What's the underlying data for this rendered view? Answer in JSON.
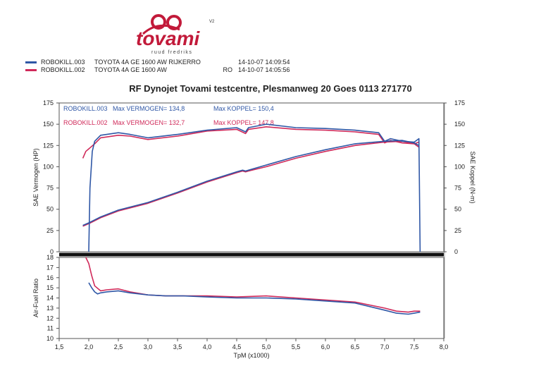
{
  "logo": {
    "brand": "tovami",
    "tagline": "ruud fredriks",
    "version": "V2"
  },
  "legend_rows": [
    {
      "run": "ROBOKILL.003",
      "vehicle": "TOYOTA 4A GE 1600 AW RIJKERRO",
      "suffix": "",
      "date": "14-10-07 14:09:54",
      "color": "#2f57a6"
    },
    {
      "run": "ROBOKILL.002",
      "vehicle": "TOYOTA 4A GE 1600 AW",
      "suffix": "RO",
      "date": "14-10-07 14:05:56",
      "color": "#d02a5a"
    }
  ],
  "title": "RF Dynojet Tovami testcentre, Plesmanweg 20 Goes 0113 271770",
  "chart_data": {
    "type": "line",
    "colors": {
      "run003": "#2f57a6",
      "run002": "#d02a5a"
    },
    "annotations": [
      {
        "run": "ROBOKILL.003",
        "vermogen": "Max VERMOGEN= 134,8",
        "koppel": "Max KOPPEL= 150,4",
        "color": "#2f57a6"
      },
      {
        "run": "ROBOKILL.002",
        "vermogen": "Max VERMOGEN= 132,7",
        "koppel": "Max KOPPEL= 147,8",
        "color": "#d02a5a"
      }
    ],
    "top": {
      "ylabel_left": "SAE Vermogen (HP)",
      "ylabel_right": "SAE Koppel (N-m)",
      "ylim": [
        0,
        175
      ],
      "yticks": [
        "0",
        "25",
        "50",
        "75",
        "100",
        "125",
        "150",
        "175"
      ],
      "series": [
        {
          "kind": "power",
          "run": "ROBOKILL.003",
          "x": [
            1.9,
            2.0,
            2.2,
            2.5,
            3.0,
            3.5,
            4.0,
            4.5,
            4.6,
            4.65,
            4.7,
            5.0,
            5.5,
            6.0,
            6.5,
            7.0,
            7.3,
            7.5,
            7.58
          ],
          "y": [
            31,
            34,
            41,
            49,
            58,
            70,
            83,
            94,
            96,
            95,
            96,
            102,
            112,
            120,
            127,
            130,
            131,
            128,
            125
          ]
        },
        {
          "kind": "power",
          "run": "ROBOKILL.002",
          "x": [
            1.9,
            2.0,
            2.2,
            2.5,
            3.0,
            3.5,
            4.0,
            4.5,
            4.6,
            4.65,
            4.7,
            5.0,
            5.5,
            6.0,
            6.5,
            7.0,
            7.3,
            7.5,
            7.58
          ],
          "y": [
            30,
            33,
            40,
            48,
            57,
            69,
            82,
            93,
            95,
            94,
            95,
            100,
            110,
            118,
            125,
            129,
            130,
            127,
            123
          ]
        },
        {
          "kind": "torque",
          "run": "ROBOKILL.003",
          "x": [
            2.0,
            2.02,
            2.06,
            2.1,
            2.2,
            2.5,
            2.7,
            3.0,
            3.5,
            4.0,
            4.5,
            4.65,
            4.7,
            5.0,
            5.5,
            6.0,
            6.5,
            6.9,
            7.0,
            7.1,
            7.3,
            7.5,
            7.58,
            7.6
          ],
          "y": [
            0,
            75,
            118,
            130,
            137,
            140,
            138,
            134,
            138,
            143,
            146,
            141,
            146,
            150,
            146,
            145,
            143,
            140,
            130,
            133,
            130,
            129,
            133,
            0
          ]
        },
        {
          "kind": "torque",
          "run": "ROBOKILL.002",
          "x": [
            1.9,
            1.95,
            2.0,
            2.1,
            2.2,
            2.5,
            2.7,
            3.0,
            3.5,
            4.0,
            4.5,
            4.65,
            4.7,
            5.0,
            5.5,
            6.0,
            6.5,
            6.9,
            7.0,
            7.1,
            7.3,
            7.5,
            7.58
          ],
          "y": [
            110,
            118,
            121,
            127,
            134,
            137,
            136,
            132,
            136,
            142,
            144,
            139,
            144,
            147,
            144,
            143,
            141,
            138,
            128,
            131,
            128,
            127,
            129
          ]
        }
      ]
    },
    "afr": {
      "ylabel": "Air-Fuel Ratio",
      "ylim": [
        10,
        18
      ],
      "yticks": [
        "10",
        "11",
        "12",
        "13",
        "14",
        "15",
        "16",
        "17",
        "18"
      ],
      "series": [
        {
          "run": "ROBOKILL.003",
          "x": [
            2.0,
            2.05,
            2.1,
            2.15,
            2.2,
            2.3,
            2.5,
            2.7,
            3.0,
            3.3,
            3.6,
            4.0,
            4.5,
            5.0,
            5.5,
            6.0,
            6.5,
            7.0,
            7.2,
            7.4,
            7.5,
            7.6
          ],
          "y": [
            15.5,
            15.0,
            14.6,
            14.4,
            14.5,
            14.6,
            14.7,
            14.5,
            14.3,
            14.2,
            14.2,
            14.1,
            14.0,
            14.0,
            13.9,
            13.7,
            13.5,
            12.8,
            12.5,
            12.4,
            12.5,
            12.6
          ]
        },
        {
          "run": "ROBOKILL.002",
          "x": [
            1.95,
            2.0,
            2.05,
            2.1,
            2.2,
            2.3,
            2.5,
            2.7,
            3.0,
            3.3,
            3.6,
            4.0,
            4.5,
            5.0,
            5.5,
            6.0,
            6.5,
            7.0,
            7.2,
            7.4,
            7.5,
            7.6
          ],
          "y": [
            18.0,
            17.4,
            16.2,
            15.2,
            14.7,
            14.8,
            14.9,
            14.6,
            14.3,
            14.2,
            14.2,
            14.2,
            14.1,
            14.2,
            14.0,
            13.8,
            13.6,
            13.0,
            12.7,
            12.6,
            12.7,
            12.7
          ]
        }
      ]
    },
    "x": {
      "label": "TpM (x1000)",
      "xlim": [
        1.5,
        8.0
      ],
      "ticks": [
        "1,5",
        "2,0",
        "2,5",
        "3,0",
        "3,5",
        "4,0",
        "4,5",
        "5,0",
        "5,5",
        "6,0",
        "6,5",
        "7,0",
        "7,5",
        "8,0"
      ]
    }
  }
}
